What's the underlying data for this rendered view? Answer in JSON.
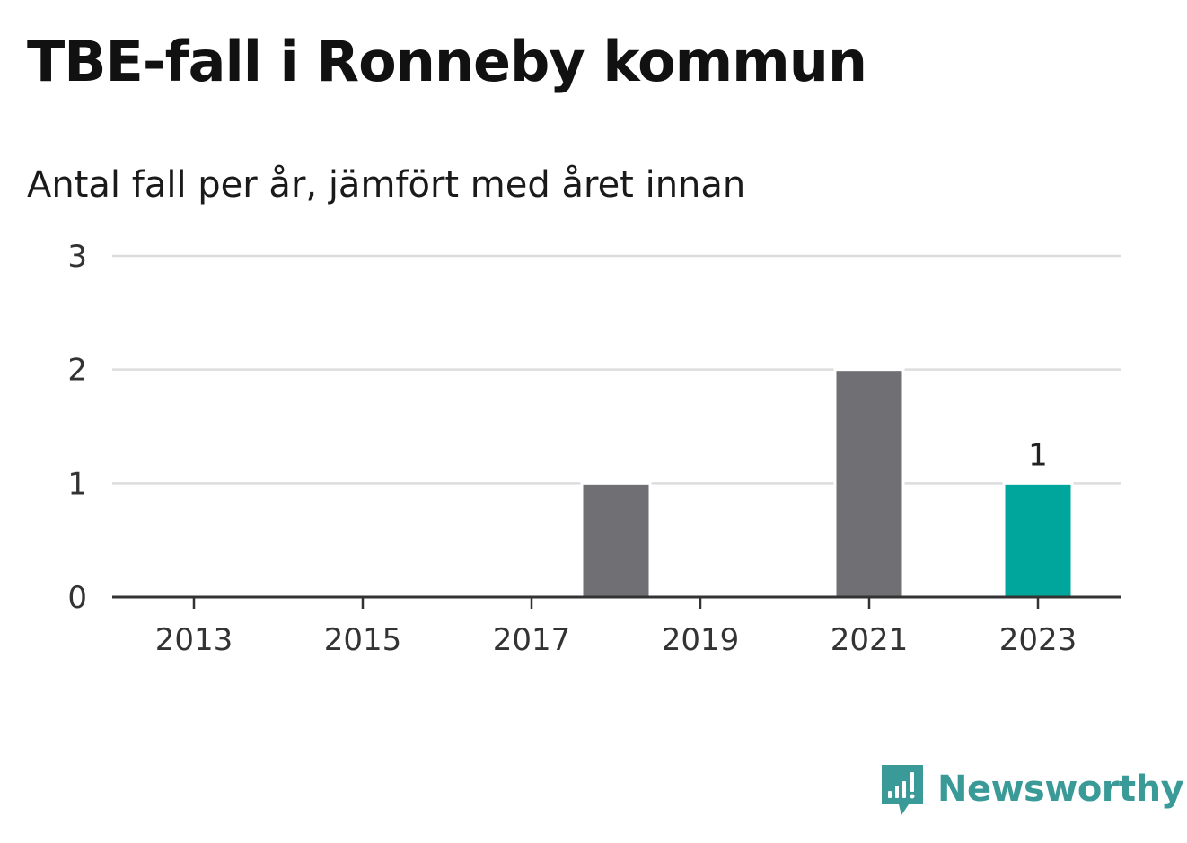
{
  "title": "TBE-fall i Ronneby kommun",
  "subtitle": "Antal fall per år, jämfört med året innan",
  "brand": {
    "name": "Newsworthy",
    "color": "#3a9a97"
  },
  "chart_data": {
    "type": "bar",
    "x": [
      2013,
      2014,
      2015,
      2016,
      2017,
      2018,
      2019,
      2020,
      2021,
      2022,
      2023
    ],
    "values": [
      0,
      0,
      0,
      0,
      0,
      1,
      0,
      0,
      2,
      0,
      1
    ],
    "x_tick_labels": [
      "2013",
      "2015",
      "2017",
      "2019",
      "2021",
      "2023"
    ],
    "y_ticks": [
      0,
      1,
      2,
      3
    ],
    "ylim": [
      0,
      3
    ],
    "xlabel": "",
    "ylabel": "",
    "grid": true,
    "data_labels": [
      {
        "x": 2023,
        "text": "1"
      }
    ],
    "colors": {
      "default": "#6f6f74",
      "highlight": "#00a59b",
      "grid": "#dddddd",
      "axis": "#333333"
    },
    "highlight_x": 2023
  }
}
